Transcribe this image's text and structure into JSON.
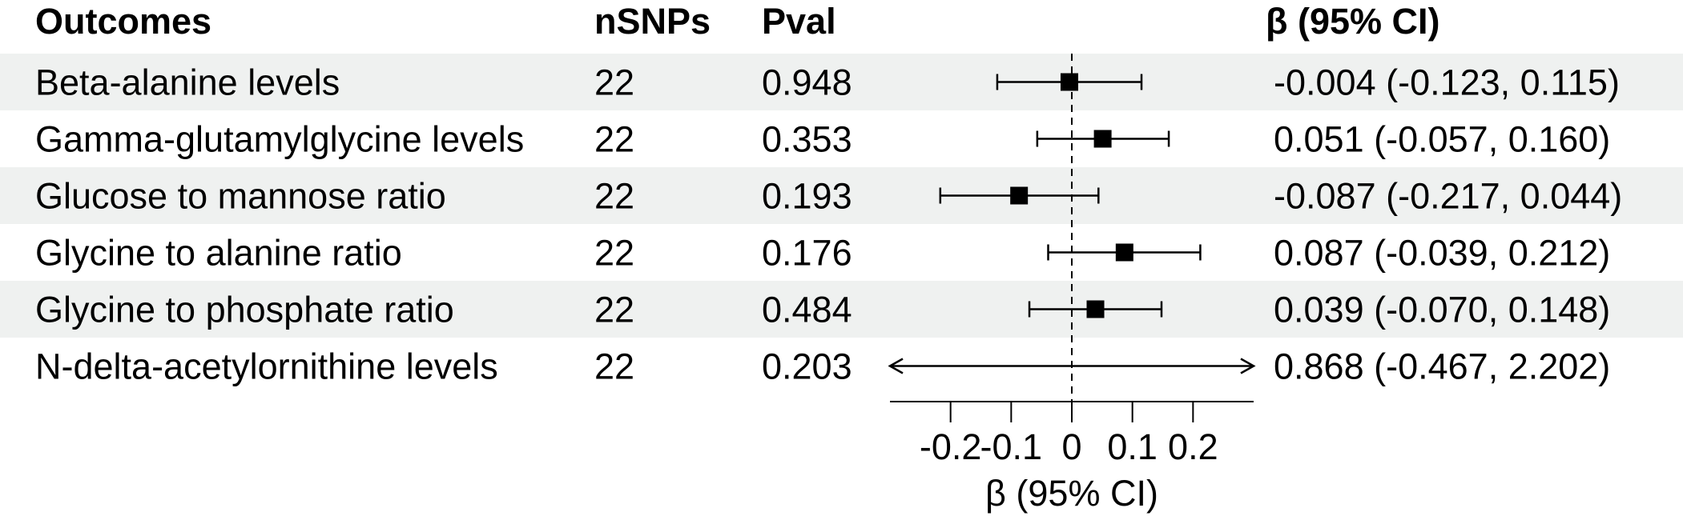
{
  "chart_data": {
    "type": "forest",
    "headers": {
      "outcome": "Outcomes",
      "nsnps": "nSNPs",
      "pval": "Pval",
      "estimate": "β (95% CI)"
    },
    "rows": [
      {
        "outcome": "Beta-alanine levels",
        "nsnps": "22",
        "pval": "0.948",
        "beta": -0.004,
        "lo": -0.123,
        "hi": 0.115,
        "ci_text": "-0.004 (-0.123, 0.115)",
        "shaded": true
      },
      {
        "outcome": "Gamma-glutamylglycine levels",
        "nsnps": "22",
        "pval": "0.353",
        "beta": 0.051,
        "lo": -0.057,
        "hi": 0.16,
        "ci_text": "0.051 (-0.057, 0.160)",
        "shaded": false
      },
      {
        "outcome": "Glucose to mannose ratio",
        "nsnps": "22",
        "pval": "0.193",
        "beta": -0.087,
        "lo": -0.217,
        "hi": 0.044,
        "ci_text": "-0.087 (-0.217, 0.044)",
        "shaded": true
      },
      {
        "outcome": "Glycine to alanine ratio",
        "nsnps": "22",
        "pval": "0.176",
        "beta": 0.087,
        "lo": -0.039,
        "hi": 0.212,
        "ci_text": "0.087 (-0.039, 0.212)",
        "shaded": false
      },
      {
        "outcome": "Glycine to phosphate ratio",
        "nsnps": "22",
        "pval": "0.484",
        "beta": 0.039,
        "lo": -0.07,
        "hi": 0.148,
        "ci_text": "0.039 (-0.070, 0.148)",
        "shaded": true
      },
      {
        "outcome": "N-delta-acetylornithine levels",
        "nsnps": "22",
        "pval": "0.203",
        "beta": 0.868,
        "lo": -0.467,
        "hi": 2.202,
        "ci_text": "0.868 (-0.467, 2.202)",
        "shaded": false
      }
    ],
    "xlim": [
      -0.3,
      0.3
    ],
    "x_ticks": [
      -0.2,
      -0.1,
      0,
      0.1,
      0.2
    ],
    "x_tick_labels": [
      "-0.2",
      "-0.1",
      "0",
      "0.1",
      "0.2"
    ],
    "xlabel": "β (95% CI)",
    "reference_line": 0,
    "colors": {
      "row_shade": "#eff1f0",
      "marker": "#000000"
    }
  }
}
